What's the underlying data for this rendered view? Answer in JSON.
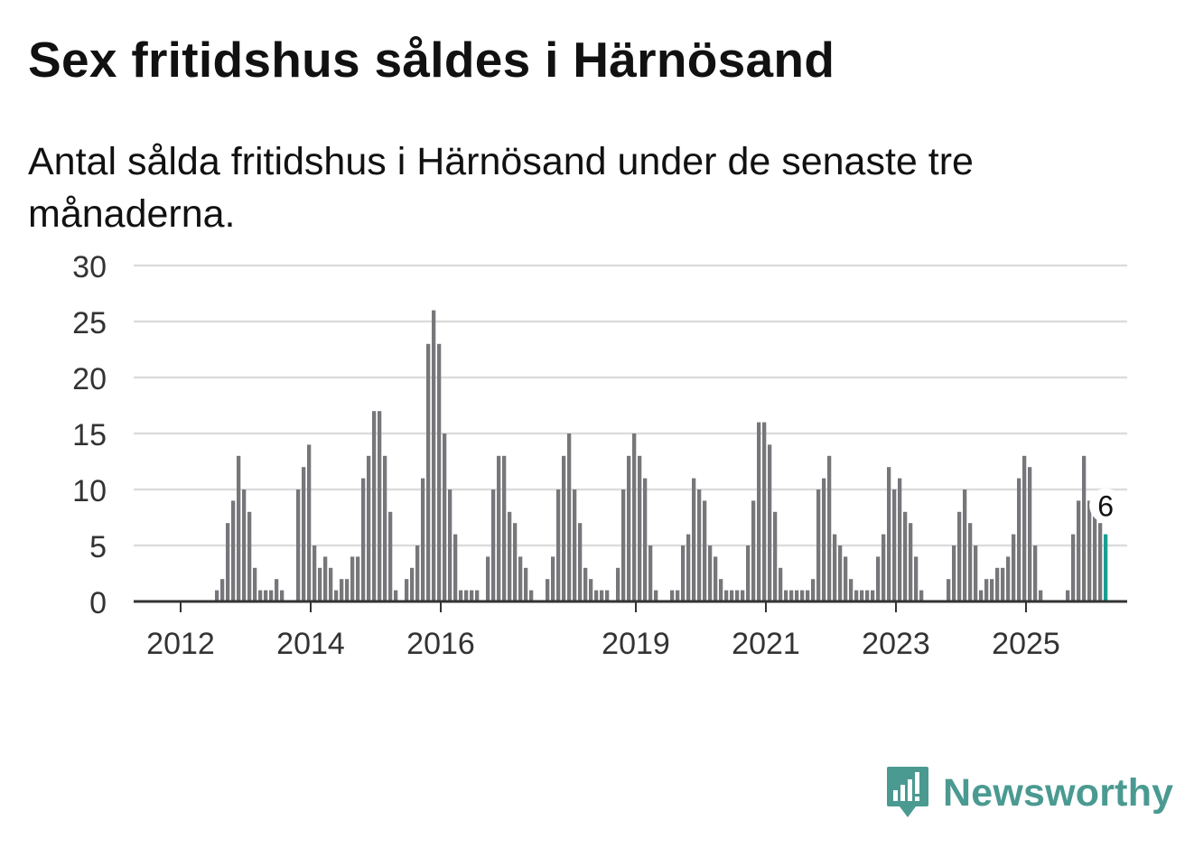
{
  "header": {
    "title": "Sex fritidshus såldes i Härnösand",
    "subtitle": "Antal sålda fritidshus i Härnösand under de senaste tre månaderna."
  },
  "brand": {
    "name": "Newsworthy",
    "icon": "newsworthy-logo-icon",
    "color": "#4a9a91"
  },
  "chart_data": {
    "type": "bar",
    "start_month": "2012-01",
    "values": [
      0,
      0,
      0,
      0,
      0,
      0,
      0,
      0,
      0,
      0,
      0,
      1,
      2,
      7,
      9,
      13,
      10,
      8,
      3,
      1,
      1,
      1,
      2,
      1,
      0,
      0,
      10,
      12,
      14,
      5,
      3,
      4,
      3,
      1,
      2,
      2,
      4,
      4,
      11,
      13,
      17,
      17,
      13,
      8,
      1,
      0,
      2,
      3,
      5,
      11,
      23,
      26,
      23,
      15,
      10,
      6,
      1,
      1,
      1,
      1,
      0,
      4,
      10,
      13,
      13,
      8,
      7,
      4,
      3,
      1,
      0,
      0,
      2,
      4,
      10,
      13,
      15,
      10,
      7,
      3,
      2,
      1,
      1,
      1,
      0,
      3,
      10,
      13,
      15,
      13,
      11,
      5,
      1,
      0,
      0,
      1,
      1,
      5,
      6,
      11,
      10,
      9,
      5,
      4,
      2,
      1,
      1,
      1,
      1,
      5,
      9,
      16,
      16,
      14,
      8,
      3,
      1,
      1,
      1,
      1,
      1,
      2,
      10,
      11,
      13,
      6,
      5,
      4,
      2,
      1,
      1,
      1,
      1,
      4,
      6,
      12,
      10,
      11,
      8,
      7,
      4,
      1,
      0,
      0,
      0,
      0,
      2,
      5,
      8,
      10,
      7,
      5,
      1,
      2,
      2,
      3,
      3,
      4,
      6,
      11,
      13,
      12,
      5,
      1,
      0,
      0,
      0,
      0,
      1,
      6,
      9,
      13,
      9,
      9,
      7,
      6
    ],
    "highlight_last": true,
    "highlight_label": "6",
    "y_ticks": [
      "0",
      "5",
      "10",
      "15",
      "20",
      "25",
      "30"
    ],
    "x_ticks": [
      {
        "label": "2012",
        "year": 2012
      },
      {
        "label": "2014",
        "year": 2014
      },
      {
        "label": "2016",
        "year": 2016
      },
      {
        "label": "2019",
        "year": 2019
      },
      {
        "label": "2021",
        "year": 2021
      },
      {
        "label": "2023",
        "year": 2023
      },
      {
        "label": "2025",
        "year": 2025
      }
    ],
    "ylim": [
      0,
      30
    ],
    "grid": true,
    "colors": {
      "bar": "#77767a",
      "highlight": "#1a9e92",
      "grid": "#dcdcdc",
      "axis": "#333333"
    }
  }
}
